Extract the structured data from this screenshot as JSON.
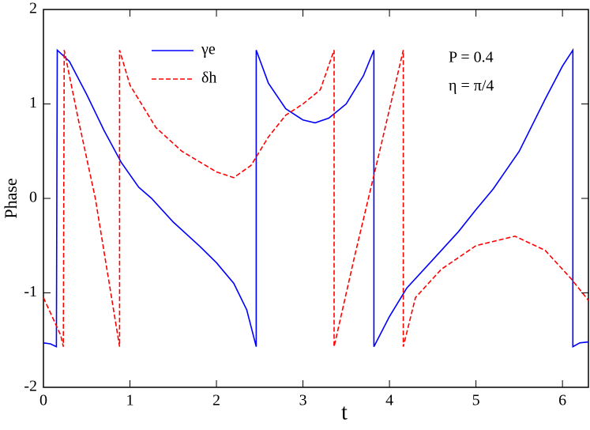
{
  "chart_data": {
    "type": "line",
    "xlabel": "t",
    "ylabel": "Phase",
    "xlim": [
      0,
      6.3
    ],
    "ylim": [
      -2,
      2
    ],
    "xticks": [
      0,
      1,
      2,
      3,
      4,
      5,
      6
    ],
    "yticks": [
      -2,
      -1,
      0,
      1,
      2
    ],
    "annotations": [
      "P = 0.4",
      "η = π/4"
    ],
    "legend": "top-left",
    "series": [
      {
        "name": "γe",
        "color": "#0000ff",
        "dash": false,
        "x": [
          0,
          0.08,
          0.15,
          0.16,
          0.3,
          0.5,
          0.7,
          0.9,
          1.1,
          1.25,
          1.5,
          1.8,
          2.0,
          2.2,
          2.35,
          2.46,
          2.46,
          2.6,
          2.8,
          3.0,
          3.14,
          3.3,
          3.5,
          3.7,
          3.82,
          3.82,
          4.0,
          4.2,
          4.5,
          4.8,
          5.0,
          5.2,
          5.5,
          5.8,
          6.0,
          6.12,
          6.12,
          6.2,
          6.3
        ],
        "values": [
          -1.53,
          -1.54,
          -1.57,
          1.57,
          1.45,
          1.1,
          0.72,
          0.38,
          0.12,
          0.0,
          -0.25,
          -0.5,
          -0.68,
          -0.9,
          -1.18,
          -1.57,
          1.57,
          1.22,
          0.95,
          0.83,
          0.8,
          0.85,
          1.0,
          1.3,
          1.57,
          -1.57,
          -1.25,
          -0.95,
          -0.65,
          -0.35,
          -0.12,
          0.1,
          0.5,
          1.05,
          1.4,
          1.57,
          -1.57,
          -1.53,
          -1.52
        ]
      },
      {
        "name": "δh",
        "color": "#ff0000",
        "dash": true,
        "x": [
          0,
          0.1,
          0.2,
          0.23,
          0.24,
          0.4,
          0.6,
          0.88,
          0.88,
          1.0,
          1.3,
          1.6,
          2.0,
          2.2,
          2.4,
          2.6,
          2.8,
          3.0,
          3.2,
          3.36,
          3.36,
          3.6,
          3.9,
          4.16,
          4.16,
          4.3,
          4.6,
          5.0,
          5.45,
          5.8,
          6.1,
          6.3
        ],
        "values": [
          -1.05,
          -1.25,
          -1.45,
          -1.57,
          1.57,
          0.85,
          0.0,
          -1.57,
          1.57,
          1.2,
          0.75,
          0.5,
          0.28,
          0.22,
          0.35,
          0.65,
          0.88,
          1.0,
          1.15,
          1.57,
          -1.57,
          -0.6,
          0.55,
          1.57,
          -1.57,
          -1.05,
          -0.75,
          -0.5,
          -0.4,
          -0.55,
          -0.85,
          -1.08
        ]
      }
    ]
  }
}
